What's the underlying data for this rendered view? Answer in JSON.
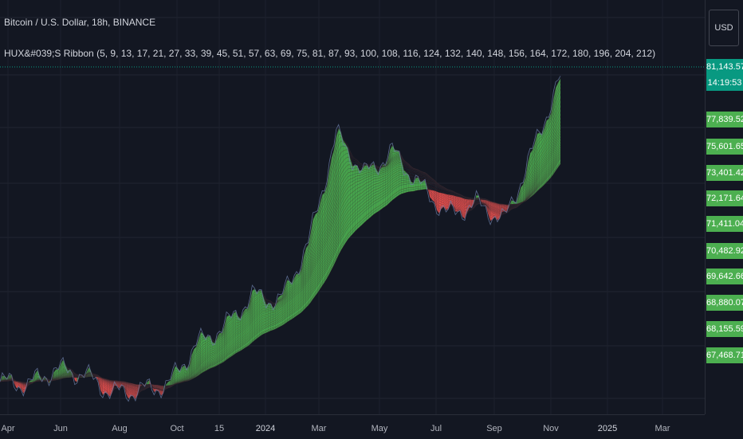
{
  "legend": {
    "symbol": "Bitcoin / U.S. Dollar, 18h, BINANCE",
    "indicator": "HUX&#039;S Ribbon (5, 9, 13, 17, 21, 27, 33, 39, 45, 51, 57, 63, 69, 75, 81, 87, 93, 100, 108, 116, 124, 132, 140, 148, 156, 164, 172, 180, 196, 204, 212)"
  },
  "price_axis": {
    "currency": "USD",
    "current_price": "81,143.57",
    "countdown": "14:19:53"
  },
  "colors": {
    "background": "#131722",
    "bull": "#4caf50",
    "bear": "#f05350",
    "current_price_bg": "#089981",
    "axis_label_bg": "#4caf50"
  },
  "chart_data": {
    "type": "line",
    "title": "",
    "xlabel": "",
    "ylabel": "",
    "x_ticks": [
      "Apr",
      "Jun",
      "Aug",
      "Oct",
      "15",
      "2024",
      "Mar",
      "May",
      "Jul",
      "Sep",
      "Nov",
      "2025",
      "Mar"
    ],
    "y_tick_labels": [
      "81,143.57",
      "77,839.52",
      "75,601.65",
      "73,401.42",
      "72,171.64",
      "71,411.04",
      "70,482.92",
      "69,642.66",
      "68,880.07",
      "68,155.59",
      "67,468.71"
    ],
    "series": [
      {
        "values": [
          {
            "x": "Apr 2023",
            "y": 28000
          },
          {
            "x": "May 2023",
            "y": 27500
          },
          {
            "x": "Jun 2023",
            "y": 30200
          },
          {
            "x": "Jul 2023",
            "y": 29300
          },
          {
            "x": "Aug 2023",
            "y": 26000
          },
          {
            "x": "Sep 2023",
            "y": 26500
          },
          {
            "x": "Oct 2023",
            "y": 27500
          },
          {
            "x": "Oct 15 2023",
            "y": 34500
          },
          {
            "x": "Nov 2023",
            "y": 37500
          },
          {
            "x": "Dec 2023",
            "y": 43000
          },
          {
            "x": "Jan 2024",
            "y": 42000
          },
          {
            "x": "Feb 2024",
            "y": 52000
          },
          {
            "x": "Mar 2024",
            "y": 71000
          },
          {
            "x": "Apr 2024",
            "y": 64000
          },
          {
            "x": "May 2024",
            "y": 68000
          },
          {
            "x": "Jun 2024",
            "y": 62000
          },
          {
            "x": "Jul 2024",
            "y": 57000
          },
          {
            "x": "Aug 2024",
            "y": 59000
          },
          {
            "x": "Sep 2024",
            "y": 56000
          },
          {
            "x": "Oct 2024",
            "y": 68000
          },
          {
            "x": "Nov 2024",
            "y": 81143.57
          }
        ]
      }
    ]
  }
}
